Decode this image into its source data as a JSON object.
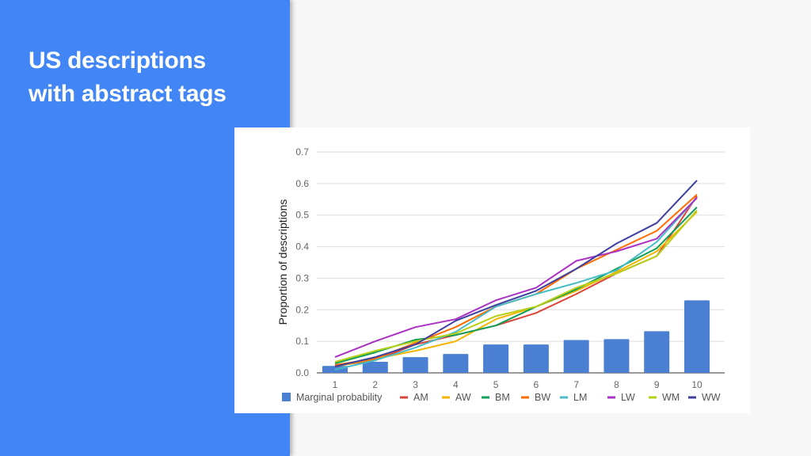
{
  "slide": {
    "title_line1": "US descriptions",
    "title_line2": "with abstract tags"
  },
  "colors": {
    "sidebar": "#4285f4",
    "background": "#f7f7f7",
    "bars": "#4a7fd1"
  },
  "chart_data": {
    "type": "bar",
    "categories": [
      "1",
      "2",
      "3",
      "4",
      "5",
      "6",
      "7",
      "8",
      "9",
      "10"
    ],
    "ylabel": "Proportion of descriptions",
    "xlabel": "",
    "ylim": [
      0,
      0.7
    ],
    "yticks": [
      "0.0",
      "0.1",
      "0.2",
      "0.3",
      "0.4",
      "0.5",
      "0.6",
      "0.7"
    ],
    "grid": true,
    "legend_position": "bottom",
    "bars": {
      "name": "Marginal probability",
      "color": "#4a7fd1",
      "values": [
        0.022,
        0.035,
        0.05,
        0.06,
        0.09,
        0.09,
        0.104,
        0.107,
        0.132,
        0.23
      ]
    },
    "series": [
      {
        "name": "AM",
        "type": "line",
        "color": "#db4437",
        "values": [
          0.022,
          0.04,
          0.09,
          0.12,
          0.15,
          0.19,
          0.25,
          0.315,
          0.37,
          0.56
        ]
      },
      {
        "name": "AW",
        "type": "line",
        "color": "#f4b400",
        "values": [
          0.02,
          0.045,
          0.07,
          0.1,
          0.17,
          0.21,
          0.26,
          0.32,
          0.385,
          0.51
        ]
      },
      {
        "name": "BM",
        "type": "line",
        "color": "#0f9d58",
        "values": [
          0.03,
          0.065,
          0.105,
          0.12,
          0.15,
          0.21,
          0.265,
          0.33,
          0.395,
          0.525
        ]
      },
      {
        "name": "BW",
        "type": "line",
        "color": "#ff6d00",
        "values": [
          0.025,
          0.045,
          0.095,
          0.145,
          0.21,
          0.25,
          0.33,
          0.39,
          0.45,
          0.565
        ]
      },
      {
        "name": "LM",
        "type": "line",
        "color": "#46bdc6",
        "values": [
          0.01,
          0.04,
          0.08,
          0.13,
          0.21,
          0.25,
          0.285,
          0.325,
          0.415,
          0.555
        ]
      },
      {
        "name": "LW",
        "type": "line",
        "color": "#ab30c4",
        "values": [
          0.05,
          0.1,
          0.145,
          0.17,
          0.23,
          0.27,
          0.355,
          0.385,
          0.425,
          0.555
        ]
      },
      {
        "name": "WM",
        "type": "line",
        "color": "#b7d016",
        "values": [
          0.035,
          0.07,
          0.1,
          0.125,
          0.18,
          0.21,
          0.27,
          0.315,
          0.37,
          0.515
        ]
      },
      {
        "name": "WW",
        "type": "line",
        "color": "#3c3fa0",
        "values": [
          0.02,
          0.05,
          0.09,
          0.165,
          0.215,
          0.26,
          0.33,
          0.41,
          0.475,
          0.61
        ]
      }
    ]
  }
}
